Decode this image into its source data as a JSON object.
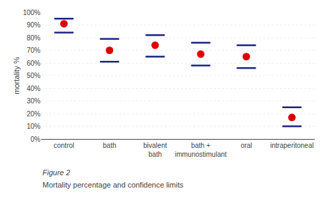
{
  "chart_data": {
    "type": "scatter",
    "categories": [
      "control",
      "bath",
      "bivalent\nbath",
      "bath +\nimmunostimulant",
      "oral",
      "intraperitoneal"
    ],
    "values": [
      0.91,
      0.7,
      0.74,
      0.67,
      0.65,
      0.17
    ],
    "color": "#dd0000",
    "marker": "circle",
    "error_bars": {
      "upper": [
        0.95,
        0.79,
        0.82,
        0.76,
        0.74,
        0.25
      ],
      "lower": [
        0.84,
        0.61,
        0.65,
        0.58,
        0.56,
        0.1
      ],
      "color": "#1a237e"
    },
    "ylabel": "mortality %",
    "ylim": [
      0,
      1.0
    ],
    "yticks": [
      {
        "value": 0,
        "label": "0%"
      },
      {
        "value": 0.1,
        "label": "10%"
      },
      {
        "value": 0.2,
        "label": "20%"
      },
      {
        "value": 0.3,
        "label": "30%"
      },
      {
        "value": 0.4,
        "label": "40%"
      },
      {
        "value": 0.5,
        "label": "50%"
      },
      {
        "value": 0.6,
        "label": "60%"
      },
      {
        "value": 0.7,
        "label": "70%"
      },
      {
        "value": 0.8,
        "label": "80%"
      },
      {
        "value": 0.9,
        "label": "90%"
      },
      {
        "value": 1.0,
        "label": "100%"
      }
    ],
    "grid": true,
    "annotations": [
      "Figure 2",
      "Mortality percentage and confidence limits"
    ]
  }
}
